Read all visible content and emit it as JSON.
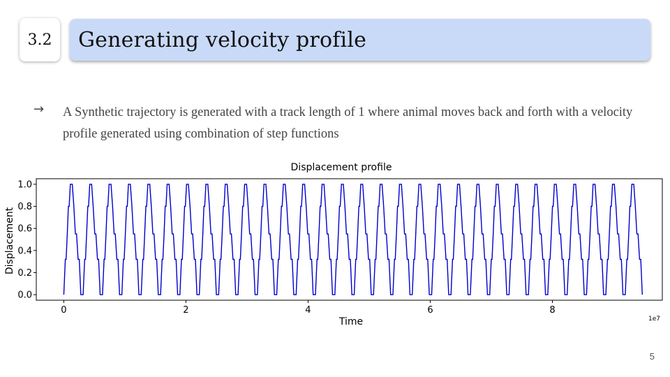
{
  "slide": {
    "section_number": "3.2",
    "title": "Generating velocity profile",
    "bullet_symbol": "→",
    "bullet_text": "A Synthetic trajectory is generated with a track length of 1 where animal moves back and forth with a velocity profile generated using combination of step functions",
    "page_number": "5"
  },
  "colors": {
    "title_bar": "#c9daf8",
    "line": "#0000cc"
  },
  "chart_data": {
    "type": "line",
    "title": "Displacement profile",
    "xlabel": "Time",
    "ylabel": "Displacement",
    "x_offset_label": "1e7",
    "xlim": [
      -0.45,
      9.8
    ],
    "ylim": [
      -0.05,
      1.05
    ],
    "x_ticks": [
      0,
      2,
      4,
      6,
      8
    ],
    "x_tick_labels": [
      "0",
      "2",
      "4",
      "6",
      "8"
    ],
    "y_ticks": [
      0.0,
      0.2,
      0.4,
      0.6,
      0.8,
      1.0
    ],
    "y_tick_labels": [
      "0.0",
      "0.2",
      "0.4",
      "0.6",
      "0.8",
      "1.0"
    ],
    "grid": false,
    "series": [
      {
        "period": 0.317,
        "cycles": 30,
        "x_end": 9.5,
        "step_levels": [
          0.0,
          0.32,
          0.55,
          0.8,
          1.0
        ]
      }
    ]
  }
}
